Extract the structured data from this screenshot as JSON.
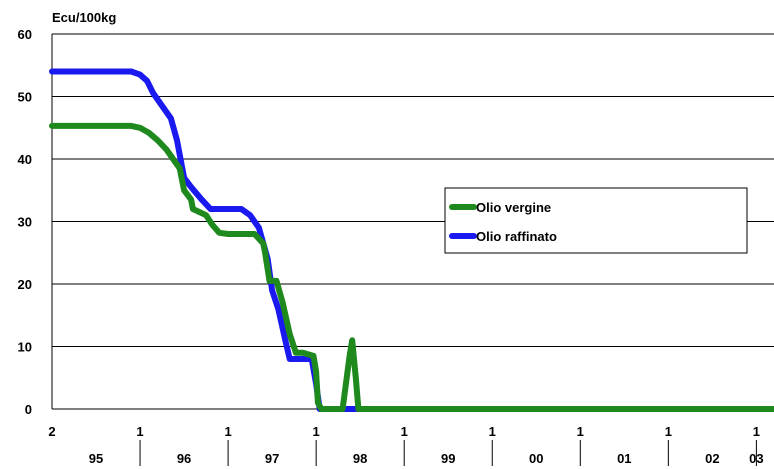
{
  "chart_data": {
    "type": "line",
    "ylabel": "Ecu/100kg",
    "ylim": [
      0,
      60
    ],
    "yticks": [
      "0",
      "10",
      "20",
      "30",
      "40",
      "50",
      "60"
    ],
    "yticks_values": [
      0,
      10,
      20,
      30,
      40,
      50,
      60
    ],
    "grid": true,
    "legend_position": "right",
    "x_top_labels": [
      {
        "label": "2",
        "x": 0.0
      },
      {
        "label": "1",
        "x": 1.0
      },
      {
        "label": "1",
        "x": 2.0
      },
      {
        "label": "1",
        "x": 3.0
      },
      {
        "label": "1",
        "x": 4.0
      },
      {
        "label": "1",
        "x": 5.0
      },
      {
        "label": "1",
        "x": 6.0
      },
      {
        "label": "1",
        "x": 7.0
      },
      {
        "label": "1",
        "x": 8.0
      }
    ],
    "x_year_labels": [
      {
        "label": "95",
        "x": 0.5
      },
      {
        "label": "96",
        "x": 1.5
      },
      {
        "label": "97",
        "x": 2.5
      },
      {
        "label": "98",
        "x": 3.5
      },
      {
        "label": "99",
        "x": 4.5
      },
      {
        "label": "00",
        "x": 5.5
      },
      {
        "label": "01",
        "x": 6.5
      },
      {
        "label": "02",
        "x": 7.5
      },
      {
        "label": "03",
        "x": 8.0
      }
    ],
    "x_separators": [
      1,
      2,
      3,
      4,
      5,
      6,
      7,
      8
    ],
    "series": [
      {
        "name": "Olio vergine",
        "color": "#1e8a1e",
        "points": [
          [
            0.0,
            45.3
          ],
          [
            0.9,
            45.3
          ],
          [
            1.0,
            45.0
          ],
          [
            1.1,
            44.2
          ],
          [
            1.2,
            43.0
          ],
          [
            1.3,
            41.5
          ],
          [
            1.45,
            38.5
          ],
          [
            1.5,
            35.0
          ],
          [
            1.58,
            33.5
          ],
          [
            1.6,
            32.0
          ],
          [
            1.75,
            31.0
          ],
          [
            1.82,
            29.5
          ],
          [
            1.9,
            28.2
          ],
          [
            2.0,
            28.0
          ],
          [
            2.3,
            28.0
          ],
          [
            2.4,
            26.5
          ],
          [
            2.42,
            25.0
          ],
          [
            2.47,
            20.5
          ],
          [
            2.55,
            20.5
          ],
          [
            2.62,
            17.0
          ],
          [
            2.7,
            12.0
          ],
          [
            2.77,
            9.0
          ],
          [
            2.85,
            9.0
          ],
          [
            2.97,
            8.5
          ],
          [
            3.0,
            6.0
          ],
          [
            3.02,
            1.0
          ],
          [
            3.06,
            0.0
          ],
          [
            3.3,
            0.0
          ],
          [
            3.38,
            8.5
          ],
          [
            3.41,
            11.0
          ],
          [
            3.45,
            5.0
          ],
          [
            3.48,
            0.0
          ],
          [
            8.2,
            0.0
          ]
        ]
      },
      {
        "name": "Olio raffinato",
        "color": "#1a1af0",
        "points": [
          [
            0.0,
            54.0
          ],
          [
            0.9,
            54.0
          ],
          [
            1.0,
            53.5
          ],
          [
            1.08,
            52.5
          ],
          [
            1.15,
            50.5
          ],
          [
            1.25,
            48.5
          ],
          [
            1.35,
            46.5
          ],
          [
            1.42,
            43.0
          ],
          [
            1.5,
            37.0
          ],
          [
            1.58,
            35.5
          ],
          [
            1.7,
            33.5
          ],
          [
            1.8,
            32.0
          ],
          [
            2.15,
            32.0
          ],
          [
            2.25,
            31.0
          ],
          [
            2.35,
            29.0
          ],
          [
            2.45,
            24.0
          ],
          [
            2.5,
            19.0
          ],
          [
            2.57,
            16.0
          ],
          [
            2.65,
            11.0
          ],
          [
            2.7,
            8.0
          ],
          [
            2.95,
            8.0
          ],
          [
            3.0,
            4.0
          ],
          [
            3.04,
            0.0
          ],
          [
            8.2,
            0.0
          ]
        ]
      }
    ]
  }
}
